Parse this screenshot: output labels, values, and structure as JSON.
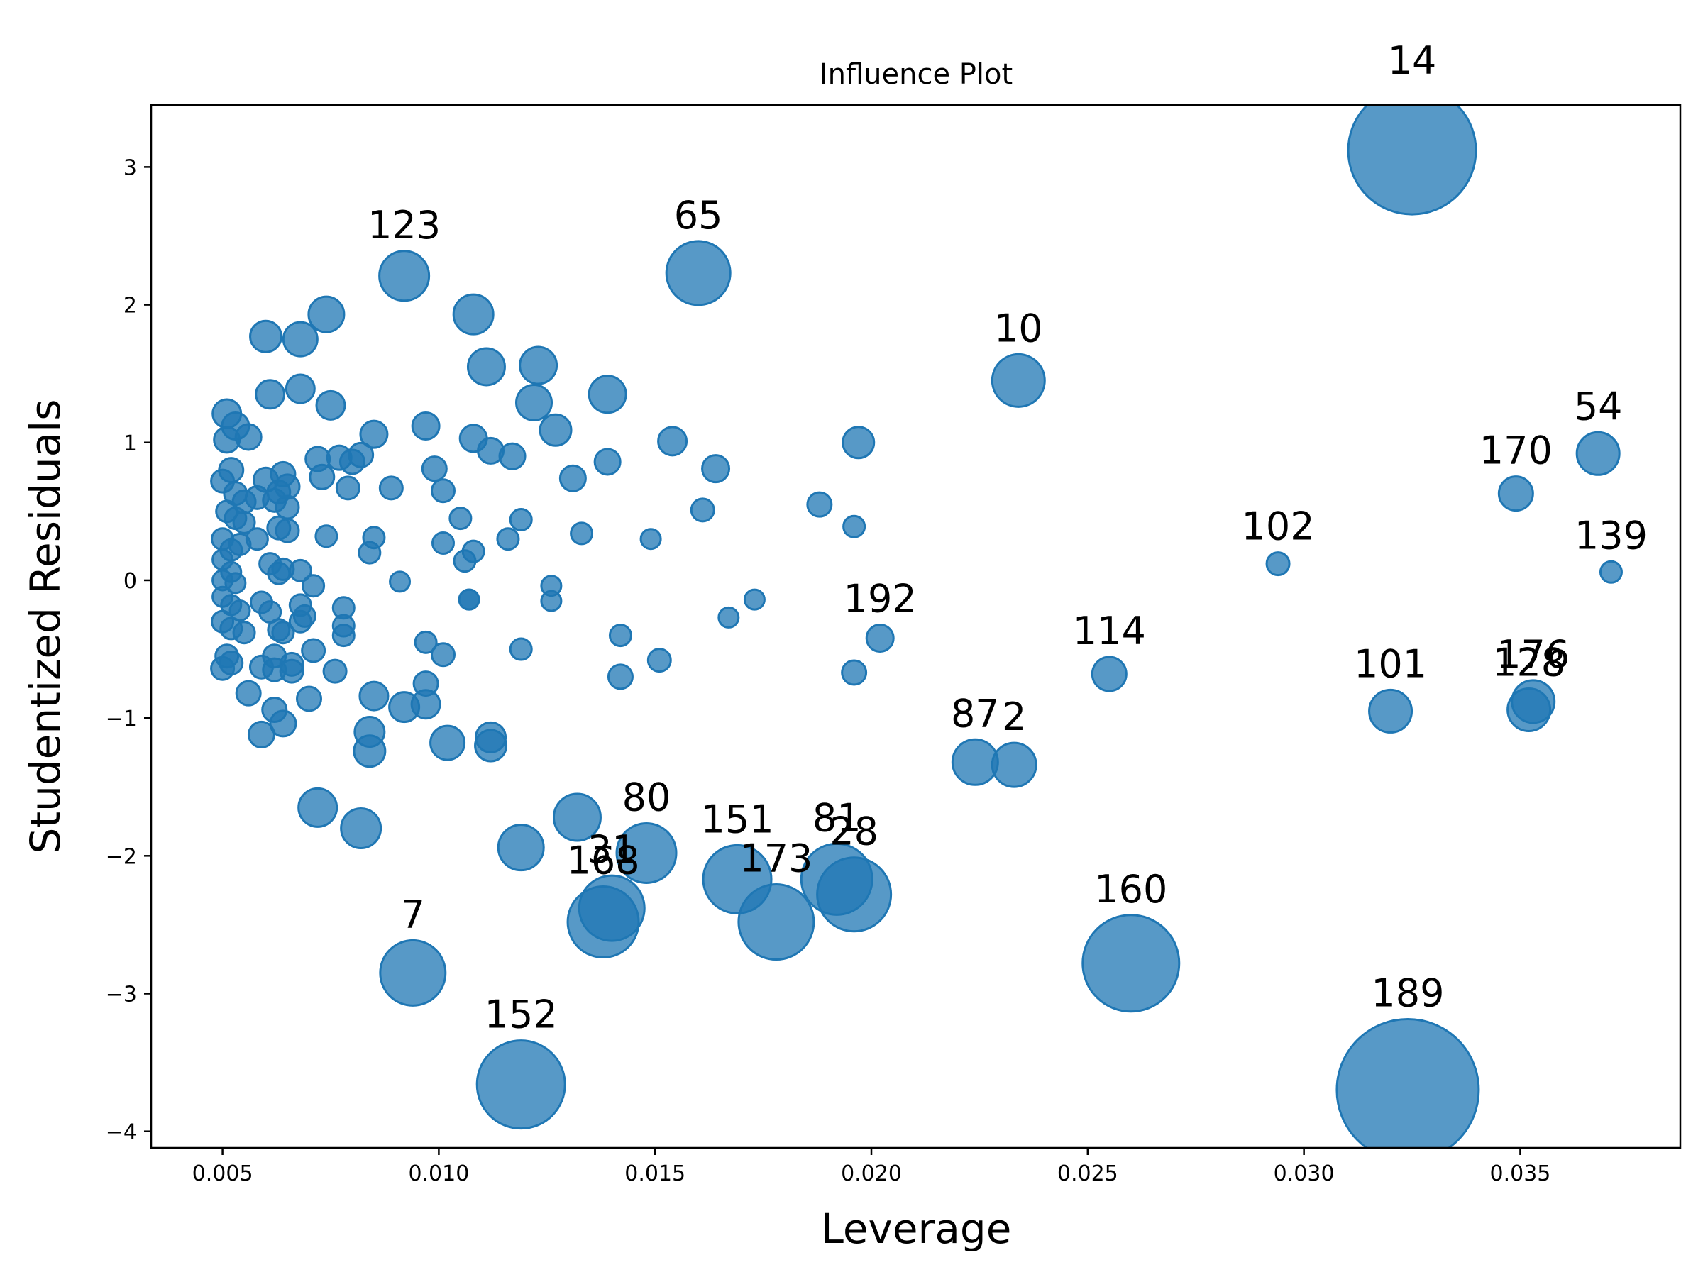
{
  "chart_data": {
    "type": "scatter",
    "title": "Influence Plot",
    "xlabel": "Leverage",
    "ylabel": "Studentized Residuals",
    "xlim": [
      0.00335,
      0.0387
    ],
    "ylim": [
      -4.12,
      3.45
    ],
    "xticks": [
      0.005,
      0.01,
      0.015,
      0.02,
      0.025,
      0.03,
      0.035
    ],
    "xtick_labels": [
      "0.005",
      "0.010",
      "0.015",
      "0.020",
      "0.025",
      "0.030",
      "0.035"
    ],
    "yticks": [
      -4,
      -3,
      -2,
      -1,
      0,
      1,
      2,
      3
    ],
    "ytick_labels": [
      "−4",
      "−3",
      "−2",
      "−1",
      "0",
      "1",
      "2",
      "3"
    ],
    "labeled_points": [
      {
        "label": "14",
        "x": 0.0325,
        "y": 3.12,
        "size": 90
      },
      {
        "label": "189",
        "x": 0.0324,
        "y": -3.7,
        "size": 100
      },
      {
        "label": "160",
        "x": 0.026,
        "y": -2.78,
        "size": 68
      },
      {
        "label": "152",
        "x": 0.0119,
        "y": -3.66,
        "size": 62
      },
      {
        "label": "7",
        "x": 0.0094,
        "y": -2.85,
        "size": 46
      },
      {
        "label": "168",
        "x": 0.0138,
        "y": -2.48,
        "size": 50
      },
      {
        "label": "31",
        "x": 0.014,
        "y": -2.38,
        "size": 46
      },
      {
        "label": "80",
        "x": 0.0148,
        "y": -1.98,
        "size": 42
      },
      {
        "label": "151",
        "x": 0.0169,
        "y": -2.17,
        "size": 48
      },
      {
        "label": "173",
        "x": 0.0178,
        "y": -2.48,
        "size": 53
      },
      {
        "label": "81",
        "x": 0.0192,
        "y": -2.17,
        "size": 50
      },
      {
        "label": "28",
        "x": 0.0196,
        "y": -2.28,
        "size": 52
      },
      {
        "label": "123",
        "x": 0.0092,
        "y": 2.21,
        "size": 35
      },
      {
        "label": "65",
        "x": 0.016,
        "y": 2.23,
        "size": 45
      },
      {
        "label": "10",
        "x": 0.0234,
        "y": 1.45,
        "size": 37
      },
      {
        "label": "54",
        "x": 0.0368,
        "y": 0.92,
        "size": 30
      },
      {
        "label": "170",
        "x": 0.0349,
        "y": 0.63,
        "size": 24
      },
      {
        "label": "102",
        "x": 0.0294,
        "y": 0.12,
        "size": 16
      },
      {
        "label": "139",
        "x": 0.0371,
        "y": 0.06,
        "size": 15
      },
      {
        "label": "192",
        "x": 0.0202,
        "y": -0.42,
        "size": 19
      },
      {
        "label": "114",
        "x": 0.0255,
        "y": -0.68,
        "size": 24
      },
      {
        "label": "101",
        "x": 0.032,
        "y": -0.95,
        "size": 30
      },
      {
        "label": "176",
        "x": 0.0353,
        "y": -0.88,
        "size": 30
      },
      {
        "label": "128",
        "x": 0.0352,
        "y": -0.94,
        "size": 30
      },
      {
        "label": "87",
        "x": 0.0224,
        "y": -1.32,
        "size": 32
      },
      {
        "label": "2",
        "x": 0.0233,
        "y": -1.34,
        "size": 31
      }
    ],
    "unlabeled_points": [
      [
        0.0092,
        -0.92,
        21
      ],
      [
        0.0097,
        -0.9,
        20
      ],
      [
        0.0102,
        -1.18,
        24
      ],
      [
        0.0112,
        -1.2,
        22
      ],
      [
        0.0112,
        -1.14,
        21
      ],
      [
        0.0084,
        -1.24,
        22
      ],
      [
        0.0084,
        -1.1,
        21
      ],
      [
        0.0085,
        -0.84,
        20
      ],
      [
        0.0072,
        -1.65,
        27
      ],
      [
        0.0082,
        -1.8,
        28
      ],
      [
        0.0119,
        -1.94,
        32
      ],
      [
        0.0132,
        -1.72,
        33
      ],
      [
        0.0051,
        1.21,
        20
      ],
      [
        0.0053,
        1.12,
        19
      ],
      [
        0.0051,
        1.02,
        18
      ],
      [
        0.0056,
        1.04,
        18
      ],
      [
        0.0052,
        0.8,
        17
      ],
      [
        0.005,
        0.72,
        16
      ],
      [
        0.0053,
        0.63,
        16
      ],
      [
        0.0055,
        0.57,
        16
      ],
      [
        0.0051,
        0.5,
        15
      ],
      [
        0.0053,
        0.45,
        15
      ],
      [
        0.0055,
        0.42,
        15
      ],
      [
        0.005,
        0.3,
        15
      ],
      [
        0.0052,
        0.22,
        15
      ],
      [
        0.0054,
        0.26,
        15
      ],
      [
        0.005,
        0.15,
        14
      ],
      [
        0.0052,
        0.06,
        14
      ],
      [
        0.005,
        0.0,
        14
      ],
      [
        0.0053,
        -0.02,
        14
      ],
      [
        0.005,
        -0.12,
        14
      ],
      [
        0.0052,
        -0.18,
        14
      ],
      [
        0.0054,
        -0.22,
        14
      ],
      [
        0.005,
        -0.3,
        15
      ],
      [
        0.0052,
        -0.35,
        15
      ],
      [
        0.0055,
        -0.38,
        15
      ],
      [
        0.0051,
        -0.55,
        16
      ],
      [
        0.005,
        -0.64,
        16
      ],
      [
        0.0052,
        -0.6,
        16
      ],
      [
        0.0056,
        -0.82,
        17
      ],
      [
        0.0058,
        0.6,
        16
      ],
      [
        0.006,
        0.73,
        17
      ],
      [
        0.0062,
        0.58,
        16
      ],
      [
        0.0063,
        0.64,
        16
      ],
      [
        0.0064,
        0.77,
        17
      ],
      [
        0.0065,
        0.68,
        17
      ],
      [
        0.0065,
        0.53,
        16
      ],
      [
        0.0063,
        0.38,
        16
      ],
      [
        0.0065,
        0.36,
        16
      ],
      [
        0.0058,
        0.3,
        15
      ],
      [
        0.0061,
        0.12,
        15
      ],
      [
        0.0063,
        0.05,
        15
      ],
      [
        0.0064,
        0.08,
        15
      ],
      [
        0.0068,
        0.07,
        15
      ],
      [
        0.0071,
        -0.04,
        15
      ],
      [
        0.0059,
        -0.16,
        15
      ],
      [
        0.0061,
        -0.23,
        15
      ],
      [
        0.0063,
        -0.36,
        15
      ],
      [
        0.0068,
        -0.18,
        15
      ],
      [
        0.0069,
        -0.26,
        15
      ],
      [
        0.0068,
        -0.3,
        15
      ],
      [
        0.0062,
        -0.55,
        16
      ],
      [
        0.0064,
        -0.38,
        15
      ],
      [
        0.0062,
        -0.65,
        16
      ],
      [
        0.0059,
        -0.63,
        16
      ],
      [
        0.0066,
        -0.61,
        16
      ],
      [
        0.0066,
        -0.66,
        16
      ],
      [
        0.0071,
        -0.51,
        16
      ],
      [
        0.007,
        -0.86,
        17
      ],
      [
        0.0062,
        -0.94,
        17
      ],
      [
        0.0064,
        -1.04,
        18
      ],
      [
        0.0059,
        -1.12,
        18
      ],
      [
        0.006,
        1.77,
        22
      ],
      [
        0.0068,
        1.75,
        24
      ],
      [
        0.0074,
        1.93,
        25
      ],
      [
        0.0061,
        1.35,
        20
      ],
      [
        0.0068,
        1.39,
        20
      ],
      [
        0.0075,
        1.27,
        20
      ],
      [
        0.0072,
        0.88,
        17
      ],
      [
        0.0077,
        0.89,
        17
      ],
      [
        0.008,
        0.86,
        17
      ],
      [
        0.0082,
        0.91,
        17
      ],
      [
        0.0085,
        1.06,
        19
      ],
      [
        0.0073,
        0.75,
        17
      ],
      [
        0.0079,
        0.67,
        16
      ],
      [
        0.0089,
        0.67,
        16
      ],
      [
        0.0074,
        0.32,
        15
      ],
      [
        0.0085,
        0.31,
        15
      ],
      [
        0.0084,
        0.2,
        15
      ],
      [
        0.0091,
        -0.01,
        14
      ],
      [
        0.0078,
        -0.2,
        15
      ],
      [
        0.0078,
        -0.33,
        15
      ],
      [
        0.0078,
        -0.4,
        15
      ],
      [
        0.0076,
        -0.66,
        16
      ],
      [
        0.0097,
        1.12,
        19
      ],
      [
        0.0099,
        0.81,
        17
      ],
      [
        0.0101,
        0.65,
        16
      ],
      [
        0.0105,
        0.45,
        15
      ],
      [
        0.0101,
        0.27,
        15
      ],
      [
        0.0106,
        0.14,
        15
      ],
      [
        0.0108,
        0.21,
        15
      ],
      [
        0.0107,
        -0.14,
        14
      ],
      [
        0.0107,
        -0.14,
        14
      ],
      [
        0.0097,
        -0.45,
        15
      ],
      [
        0.0101,
        -0.54,
        16
      ],
      [
        0.0097,
        -0.75,
        17
      ],
      [
        0.0108,
        1.03,
        19
      ],
      [
        0.0112,
        0.94,
        18
      ],
      [
        0.0117,
        0.9,
        18
      ],
      [
        0.0108,
        1.93,
        28
      ],
      [
        0.0111,
        1.55,
        26
      ],
      [
        0.0123,
        1.56,
        26
      ],
      [
        0.0122,
        1.29,
        25
      ],
      [
        0.0127,
        1.09,
        22
      ],
      [
        0.0116,
        0.3,
        15
      ],
      [
        0.0119,
        0.44,
        15
      ],
      [
        0.0119,
        -0.5,
        15
      ],
      [
        0.0126,
        -0.04,
        14
      ],
      [
        0.0126,
        -0.15,
        14
      ],
      [
        0.0131,
        0.74,
        18
      ],
      [
        0.0133,
        0.34,
        15
      ],
      [
        0.0139,
        1.35,
        26
      ],
      [
        0.0139,
        0.86,
        18
      ],
      [
        0.0142,
        -0.4,
        15
      ],
      [
        0.0142,
        -0.7,
        17
      ],
      [
        0.0149,
        0.3,
        14
      ],
      [
        0.0151,
        -0.58,
        16
      ],
      [
        0.0154,
        1.01,
        20
      ],
      [
        0.0161,
        0.51,
        16
      ],
      [
        0.0164,
        0.81,
        19
      ],
      [
        0.0167,
        -0.27,
        14
      ],
      [
        0.0173,
        -0.14,
        14
      ],
      [
        0.0188,
        0.55,
        17
      ],
      [
        0.0197,
        1.0,
        22
      ],
      [
        0.0196,
        0.39,
        15
      ],
      [
        0.0196,
        -0.67,
        17
      ]
    ]
  }
}
